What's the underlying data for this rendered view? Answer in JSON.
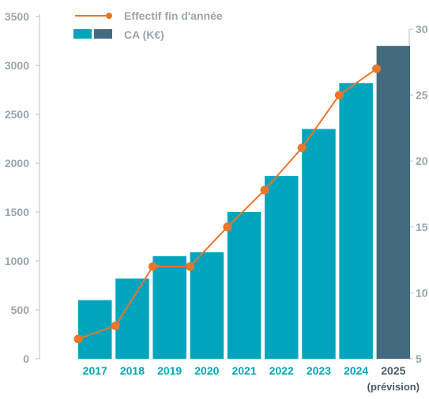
{
  "chart_data": {
    "type": "bar+line",
    "categories": [
      "2017",
      "2018",
      "2019",
      "2020",
      "2021",
      "2022",
      "2023",
      "2024",
      "2025"
    ],
    "category_notes": [
      "",
      "",
      "",
      "",
      "",
      "",
      "",
      "",
      "(prévision)"
    ],
    "series": [
      {
        "name": "CA (K€)",
        "type": "bar",
        "axis": "left",
        "values": [
          600,
          820,
          1050,
          1090,
          1500,
          1870,
          2350,
          2820,
          3200
        ],
        "colors": [
          "#00a5bd",
          "#00a5bd",
          "#00a5bd",
          "#00a5bd",
          "#00a5bd",
          "#00a5bd",
          "#00a5bd",
          "#00a5bd",
          "#456a7d"
        ]
      },
      {
        "name": "Effectif fin d'année",
        "type": "line",
        "axis": "right",
        "values": [
          6.5,
          7.5,
          12,
          12,
          15,
          17.8,
          21,
          25,
          27
        ],
        "color": "#e8762b"
      }
    ],
    "y_left": {
      "min": 0,
      "max": 3500,
      "ticks": [
        "0",
        "500",
        "1000",
        "1500",
        "2000",
        "2500",
        "3000",
        "3500"
      ]
    },
    "y_right": {
      "min": 5,
      "max": 30,
      "ticks": [
        "5",
        "10",
        "15",
        "20",
        "25",
        "30"
      ]
    },
    "colors": {
      "bar": "#00a5bd",
      "bar_forecast": "#456a7d",
      "line": "#e8762b",
      "axis": "#b8c2c8",
      "label_current": "#00a5bd",
      "label_forecast": "#4a5a66"
    },
    "legend": {
      "placement": "top-left"
    }
  }
}
